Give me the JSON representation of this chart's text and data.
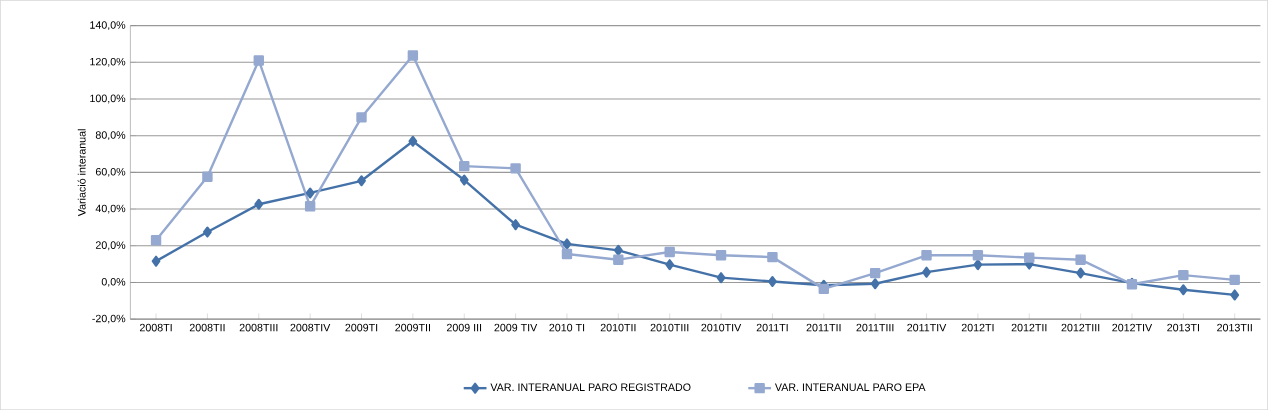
{
  "chart_data": {
    "type": "line",
    "ylabel": "Variació interanual",
    "categories": [
      "2008TI",
      "2008TII",
      "2008TIII",
      "2008TIV",
      "2009TI",
      "2009TII",
      "2009 III",
      "2009 TIV",
      "2010 TI",
      "2010TII",
      "2010TIII",
      "2010TIV",
      "2011TI",
      "2011TII",
      "2011TIII",
      "2011TIV",
      "2012TI",
      "2012TII",
      "2012TIII",
      "2012TIV",
      "2013TI",
      "2013TII"
    ],
    "series": [
      {
        "name": "VAR. INTERANUAL PARO REGISTRADO",
        "color": "#4472a8",
        "marker": "diamond",
        "values": [
          11.6,
          27.5,
          42.6,
          48.8,
          55.4,
          77,
          55.8,
          31.5,
          21,
          17.5,
          9.7,
          2.6,
          0.5,
          -1.5,
          -0.7,
          5.6,
          9.7,
          10,
          5.1,
          -0.4,
          -4,
          -6.8
        ]
      },
      {
        "name": "VAR. INTERANUAL PARO EPA",
        "color": "#94a8d0",
        "marker": "square",
        "values": [
          23,
          57.6,
          121,
          41.5,
          90,
          123.7,
          63.4,
          62.2,
          15.5,
          12.4,
          16.6,
          14.8,
          13.8,
          -3.5,
          5.1,
          14.8,
          14.8,
          13.5,
          12.4,
          -1,
          4,
          1.4
        ]
      }
    ],
    "ylim": [
      -20,
      140
    ],
    "yticks": [
      {
        "value": -20,
        "label": "-20,0%"
      },
      {
        "value": 0,
        "label": "0,0%"
      },
      {
        "value": 20,
        "label": "20,0%"
      },
      {
        "value": 40,
        "label": "40,0%"
      },
      {
        "value": 60,
        "label": "60,0%"
      },
      {
        "value": 80,
        "label": "80,0%"
      },
      {
        "value": 100,
        "label": "100,0%"
      },
      {
        "value": 120,
        "label": "120,0%"
      },
      {
        "value": 140,
        "label": "140,0%"
      }
    ],
    "grid": "y",
    "legend": "bottom",
    "line_style": "solid"
  }
}
